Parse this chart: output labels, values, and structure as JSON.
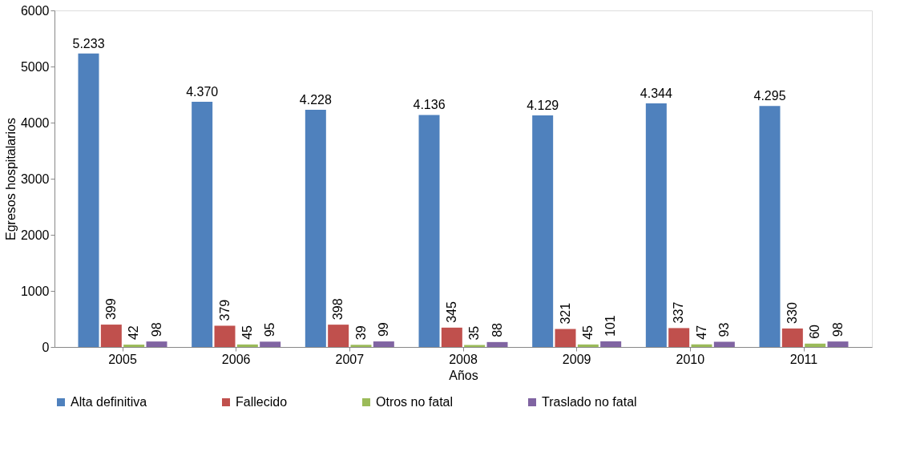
{
  "chart_data": {
    "type": "bar",
    "xlabel": "Años",
    "ylabel": "Egresos hospitalarios",
    "categories": [
      "2005",
      "2006",
      "2007",
      "2008",
      "2009",
      "2010",
      "2011"
    ],
    "series": [
      {
        "name": "Alta definitiva",
        "color": "#4f81bd",
        "values": [
          5233,
          4370,
          4228,
          4136,
          4129,
          4344,
          4295
        ],
        "value_labels": [
          "5.233",
          "4.370",
          "4.228",
          "4.136",
          "4.129",
          "4.344",
          "4.295"
        ]
      },
      {
        "name": "Fallecido",
        "color": "#c0504d",
        "values": [
          399,
          379,
          398,
          345,
          321,
          337,
          330
        ],
        "value_labels": [
          "399",
          "379",
          "398",
          "345",
          "321",
          "337",
          "330"
        ]
      },
      {
        "name": "Otros no fatal",
        "color": "#9bbb59",
        "values": [
          42,
          45,
          39,
          35,
          45,
          47,
          60
        ],
        "value_labels": [
          "42",
          "45",
          "39",
          "35",
          "45",
          "47",
          "60"
        ]
      },
      {
        "name": "Traslado no fatal",
        "color": "#8064a2",
        "values": [
          98,
          95,
          99,
          88,
          101,
          93,
          98
        ],
        "value_labels": [
          "98",
          "95",
          "99",
          "88",
          "101",
          "93",
          "98"
        ]
      }
    ],
    "ylim": [
      0,
      6000
    ],
    "yticks": [
      0,
      1000,
      2000,
      3000,
      4000,
      5000,
      6000
    ],
    "grid": false,
    "legend": "bottom"
  }
}
